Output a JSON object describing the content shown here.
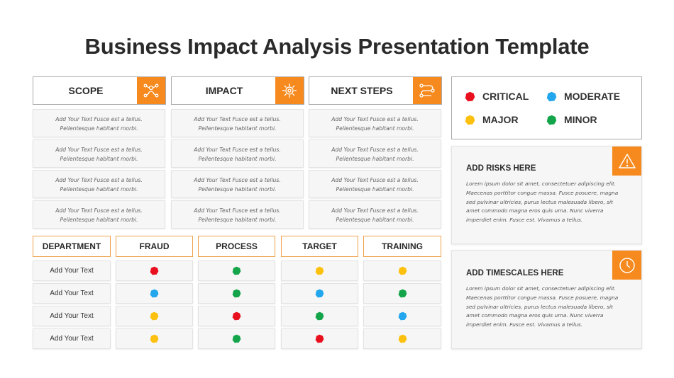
{
  "title": "Business Impact Analysis Presentation Template",
  "colors": {
    "accent": "#f68a1e",
    "critical": "#e8101e",
    "moderate": "#22a7ee",
    "major": "#fcc10f",
    "minor": "#14a54a"
  },
  "top_sections": [
    {
      "label": "SCOPE",
      "icon": "team-network-icon"
    },
    {
      "label": "IMPACT",
      "icon": "gear-target-icon"
    },
    {
      "label": "NEXT STEPS",
      "icon": "path-steps-icon"
    }
  ],
  "placeholder_text": {
    "line1": "Add Your Text Fusce est a tellus.",
    "line2": "Pellentesque habitant morbi."
  },
  "legend": [
    {
      "label": "CRITICAL",
      "status": "critical"
    },
    {
      "label": "MODERATE",
      "status": "moderate"
    },
    {
      "label": "MAJOR",
      "status": "major"
    },
    {
      "label": "MINOR",
      "status": "minor"
    }
  ],
  "matrix": {
    "headers": [
      "DEPARTMENT",
      "FRAUD",
      "PROCESS",
      "TARGET",
      "TRAINING"
    ],
    "rows": [
      {
        "department": "Add Your Text",
        "statuses": [
          "critical",
          "minor",
          "major",
          "major"
        ]
      },
      {
        "department": "Add Your Text",
        "statuses": [
          "moderate",
          "minor",
          "moderate",
          "minor"
        ]
      },
      {
        "department": "Add Your Text",
        "statuses": [
          "major",
          "critical",
          "minor",
          "moderate"
        ]
      },
      {
        "department": "Add Your Text",
        "statuses": [
          "major",
          "minor",
          "critical",
          "major"
        ]
      }
    ]
  },
  "cards": [
    {
      "title": "ADD RISKS HERE",
      "icon": "warning-icon",
      "lines": [
        "Lorem ipsum dolor sit amet, consectetuer adipiscing elit.",
        "Maecenas porttitor congue massa. Fusce posuere, magna",
        "sed pulvinar ultricies, purus lectus malesuada libero, sit",
        "amet commodo magna eros quis urna. Nunc viverra",
        "imperdiet enim. Fusce est. Vivamus a tellus."
      ]
    },
    {
      "title": "ADD TIMESCALES HERE",
      "icon": "clock-icon",
      "lines": [
        "Lorem ipsum dolor sit amet, consectetuer adipiscing elit.",
        "Maecenas porttitor congue massa. Fusce posuere, magna",
        "sed pulvinar ultricies, purus lectus malesuada libero, sit",
        "amet commodo magna eros quis urna. Nunc viverra",
        "imperdiet enim. Fusce est. Vivamus a tellus."
      ]
    }
  ]
}
